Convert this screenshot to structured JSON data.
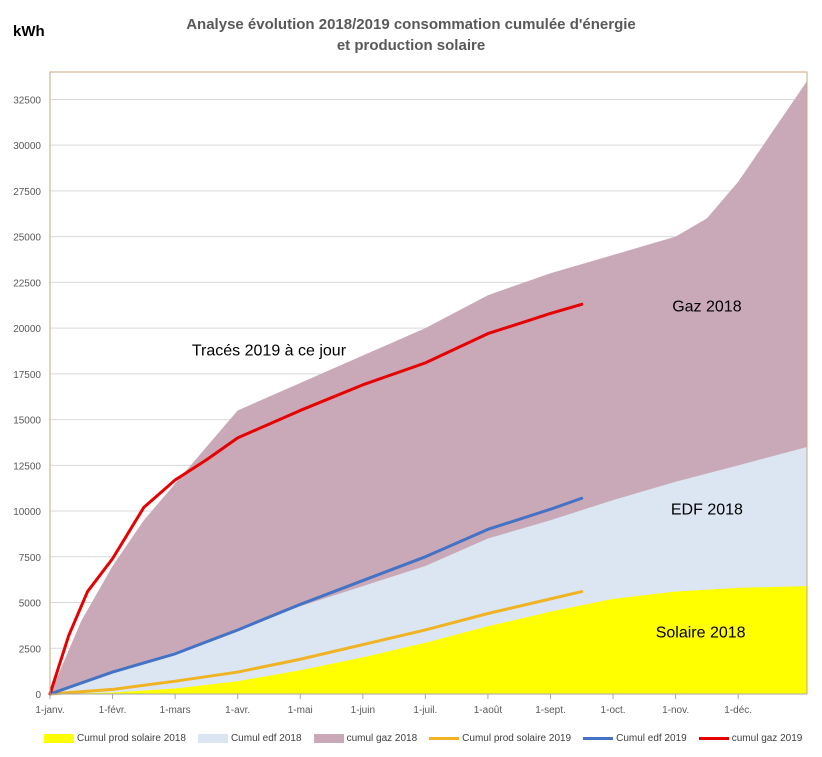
{
  "chart_data": {
    "type": "area",
    "title_line1": "Analyse évolution 2018/2019 consommation cumulée d'énergie",
    "title_line2": "et production solaire",
    "unit_label": "kWh",
    "ylim": [
      0,
      34000
    ],
    "yticks": [
      0,
      2500,
      5000,
      7500,
      10000,
      12500,
      15000,
      17500,
      20000,
      22500,
      25000,
      27500,
      30000,
      32500
    ],
    "xticks": [
      {
        "label": "1-janv.",
        "month": 0
      },
      {
        "label": "1-févr.",
        "month": 1
      },
      {
        "label": "1-mars",
        "month": 2
      },
      {
        "label": "1-avr.",
        "month": 3
      },
      {
        "label": "1-mai",
        "month": 4
      },
      {
        "label": "1-juin",
        "month": 5
      },
      {
        "label": "1-juil.",
        "month": 6
      },
      {
        "label": "1-août",
        "month": 7
      },
      {
        "label": "1-sept.",
        "month": 8
      },
      {
        "label": "1-oct.",
        "month": 9
      },
      {
        "label": "1-nov.",
        "month": 10
      },
      {
        "label": "1-déc.",
        "month": 11
      }
    ],
    "xlim": [
      0,
      12.1
    ],
    "grid": true,
    "legend_position": "bottom",
    "annotations": [
      {
        "text": "Tracés 2019 à ce jour",
        "x": 3.5,
        "y": 18500
      },
      {
        "text": "Gaz 2018",
        "x": 10.5,
        "y": 20900
      },
      {
        "text": "EDF 2018",
        "x": 10.5,
        "y": 9800
      },
      {
        "text": "Solaire 2018",
        "x": 10.4,
        "y": 3100
      }
    ],
    "series": [
      {
        "name": "Cumul prod solaire 2018",
        "kind": "area",
        "color": "#FFFF00",
        "x": [
          0,
          1,
          2,
          3,
          4,
          5,
          6,
          7,
          8,
          9,
          10,
          11,
          12.1
        ],
        "y": [
          0,
          80,
          300,
          700,
          1300,
          2000,
          2800,
          3700,
          4500,
          5200,
          5600,
          5800,
          5900
        ]
      },
      {
        "name": "Cumul edf 2018",
        "kind": "area",
        "color": "#DCE6F2",
        "x": [
          0,
          1,
          2,
          3,
          4,
          5,
          6,
          7,
          8,
          9,
          10,
          11,
          12.1
        ],
        "y": [
          0,
          1200,
          2300,
          3500,
          4800,
          5900,
          7000,
          8500,
          9500,
          10600,
          11600,
          12500,
          13500
        ]
      },
      {
        "name": "cumul gaz 2018",
        "kind": "area",
        "color": "#C9A9B8",
        "x": [
          0,
          0.5,
          1,
          1.5,
          2,
          2.5,
          3,
          4,
          5,
          6,
          7,
          8,
          8.5,
          9,
          10,
          10.5,
          11,
          11.5,
          12.1
        ],
        "y": [
          0,
          4000,
          7000,
          9500,
          11500,
          13500,
          15500,
          17000,
          18500,
          20000,
          21800,
          23000,
          23500,
          24000,
          25000,
          26000,
          28000,
          30500,
          33500
        ]
      },
      {
        "name": "Cumul prod solaire 2019",
        "kind": "line",
        "color": "#F0B323",
        "x": [
          0,
          1,
          2,
          3,
          4,
          5,
          6,
          7,
          8,
          8.5
        ],
        "y": [
          0,
          250,
          700,
          1200,
          1900,
          2700,
          3500,
          4400,
          5200,
          5600
        ]
      },
      {
        "name": "Cumul edf 2019",
        "kind": "line",
        "color": "#4472C4",
        "x": [
          0,
          1,
          2,
          3,
          4,
          5,
          6,
          7,
          8,
          8.5
        ],
        "y": [
          0,
          1200,
          2200,
          3500,
          4900,
          6200,
          7500,
          9000,
          10100,
          10700
        ]
      },
      {
        "name": "cumul gaz 2019",
        "kind": "line",
        "color": "#E60000",
        "x": [
          0,
          0.3,
          0.6,
          1,
          1.5,
          2,
          2.5,
          3,
          4,
          5,
          6,
          7,
          8,
          8.5
        ],
        "y": [
          0,
          3200,
          5600,
          7400,
          10200,
          11700,
          12800,
          14000,
          15500,
          16900,
          18100,
          19700,
          20800,
          21300
        ]
      }
    ]
  }
}
